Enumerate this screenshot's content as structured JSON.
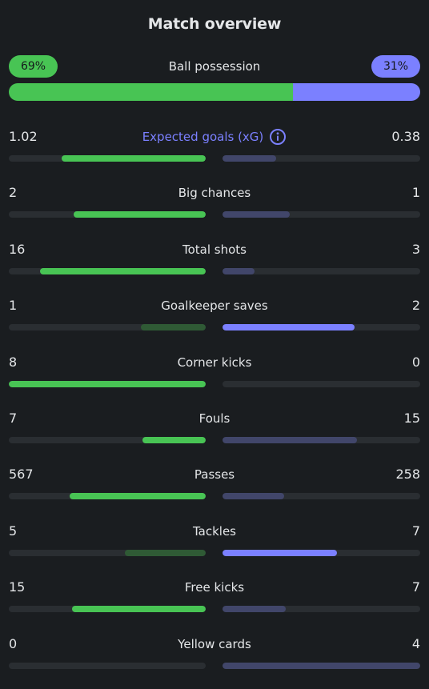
{
  "title": "Match overview",
  "possession": {
    "label": "Ball possession",
    "home_text": "69%",
    "away_text": "31%",
    "home": 69,
    "away": 31
  },
  "colors": {
    "home": "#48c454",
    "away": "#7b80ff",
    "home_dim": "#2f5a35",
    "away_dim": "#41466a",
    "xg_label": "#7b80ff"
  },
  "stats": [
    {
      "label": "Expected goals (xG)",
      "home": "1.02",
      "away": "0.38",
      "home_fill": 0.73,
      "away_fill": 0.27,
      "home_style": "bright",
      "away_style": "dim",
      "has_info": true
    },
    {
      "label": "Big chances",
      "home": "2",
      "away": "1",
      "home_fill": 0.67,
      "away_fill": 0.34,
      "home_style": "bright",
      "away_style": "dim"
    },
    {
      "label": "Total shots",
      "home": "16",
      "away": "3",
      "home_fill": 0.84,
      "away_fill": 0.16,
      "home_style": "bright",
      "away_style": "dim"
    },
    {
      "label": "Goalkeeper saves",
      "home": "1",
      "away": "2",
      "home_fill": 0.33,
      "away_fill": 0.67,
      "home_style": "dim",
      "away_style": "bright"
    },
    {
      "label": "Corner kicks",
      "home": "8",
      "away": "0",
      "home_fill": 1.0,
      "away_fill": 0.0,
      "home_style": "bright",
      "away_style": "dim"
    },
    {
      "label": "Fouls",
      "home": "7",
      "away": "15",
      "home_fill": 0.32,
      "away_fill": 0.68,
      "home_style": "bright",
      "away_style": "dim"
    },
    {
      "label": "Passes",
      "home": "567",
      "away": "258",
      "home_fill": 0.69,
      "away_fill": 0.31,
      "home_style": "bright",
      "away_style": "dim"
    },
    {
      "label": "Tackles",
      "home": "5",
      "away": "7",
      "home_fill": 0.41,
      "away_fill": 0.58,
      "home_style": "dim",
      "away_style": "bright"
    },
    {
      "label": "Free kicks",
      "home": "15",
      "away": "7",
      "home_fill": 0.68,
      "away_fill": 0.32,
      "home_style": "bright",
      "away_style": "dim"
    },
    {
      "label": "Yellow cards",
      "home": "0",
      "away": "4",
      "home_fill": 0.0,
      "away_fill": 1.0,
      "home_style": "bright",
      "away_style": "dim"
    }
  ]
}
